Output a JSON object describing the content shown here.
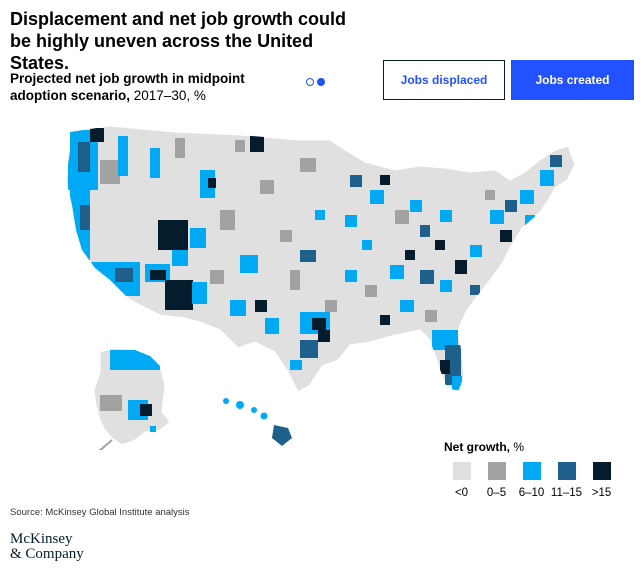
{
  "headline": "Displacement and net job growth could be highly uneven across the United States.",
  "subtitle": {
    "bold": "Projected net job growth in midpoint adoption scenario,",
    "normal": " 2017–30, %"
  },
  "pager": {
    "count": 2,
    "active_index": 1
  },
  "buttons": {
    "displaced": "Jobs displaced",
    "created": "Jobs created",
    "selected": "created"
  },
  "legend": {
    "title_bold": "Net growth,",
    "title_unit": " %",
    "items": [
      {
        "label": "<0",
        "color": "#e0e0e0"
      },
      {
        "label": "0–5",
        "color": "#a2a2a2"
      },
      {
        "label": "6–10",
        "color": "#00a9f4"
      },
      {
        "label": "11–15",
        "color": "#1f5f8b"
      },
      {
        "label": ">15",
        "color": "#051c2c"
      }
    ]
  },
  "source": "Source: McKinsey Global Institute analysis",
  "logo": {
    "line1": "McKinsey",
    "line2": "& Company"
  }
}
